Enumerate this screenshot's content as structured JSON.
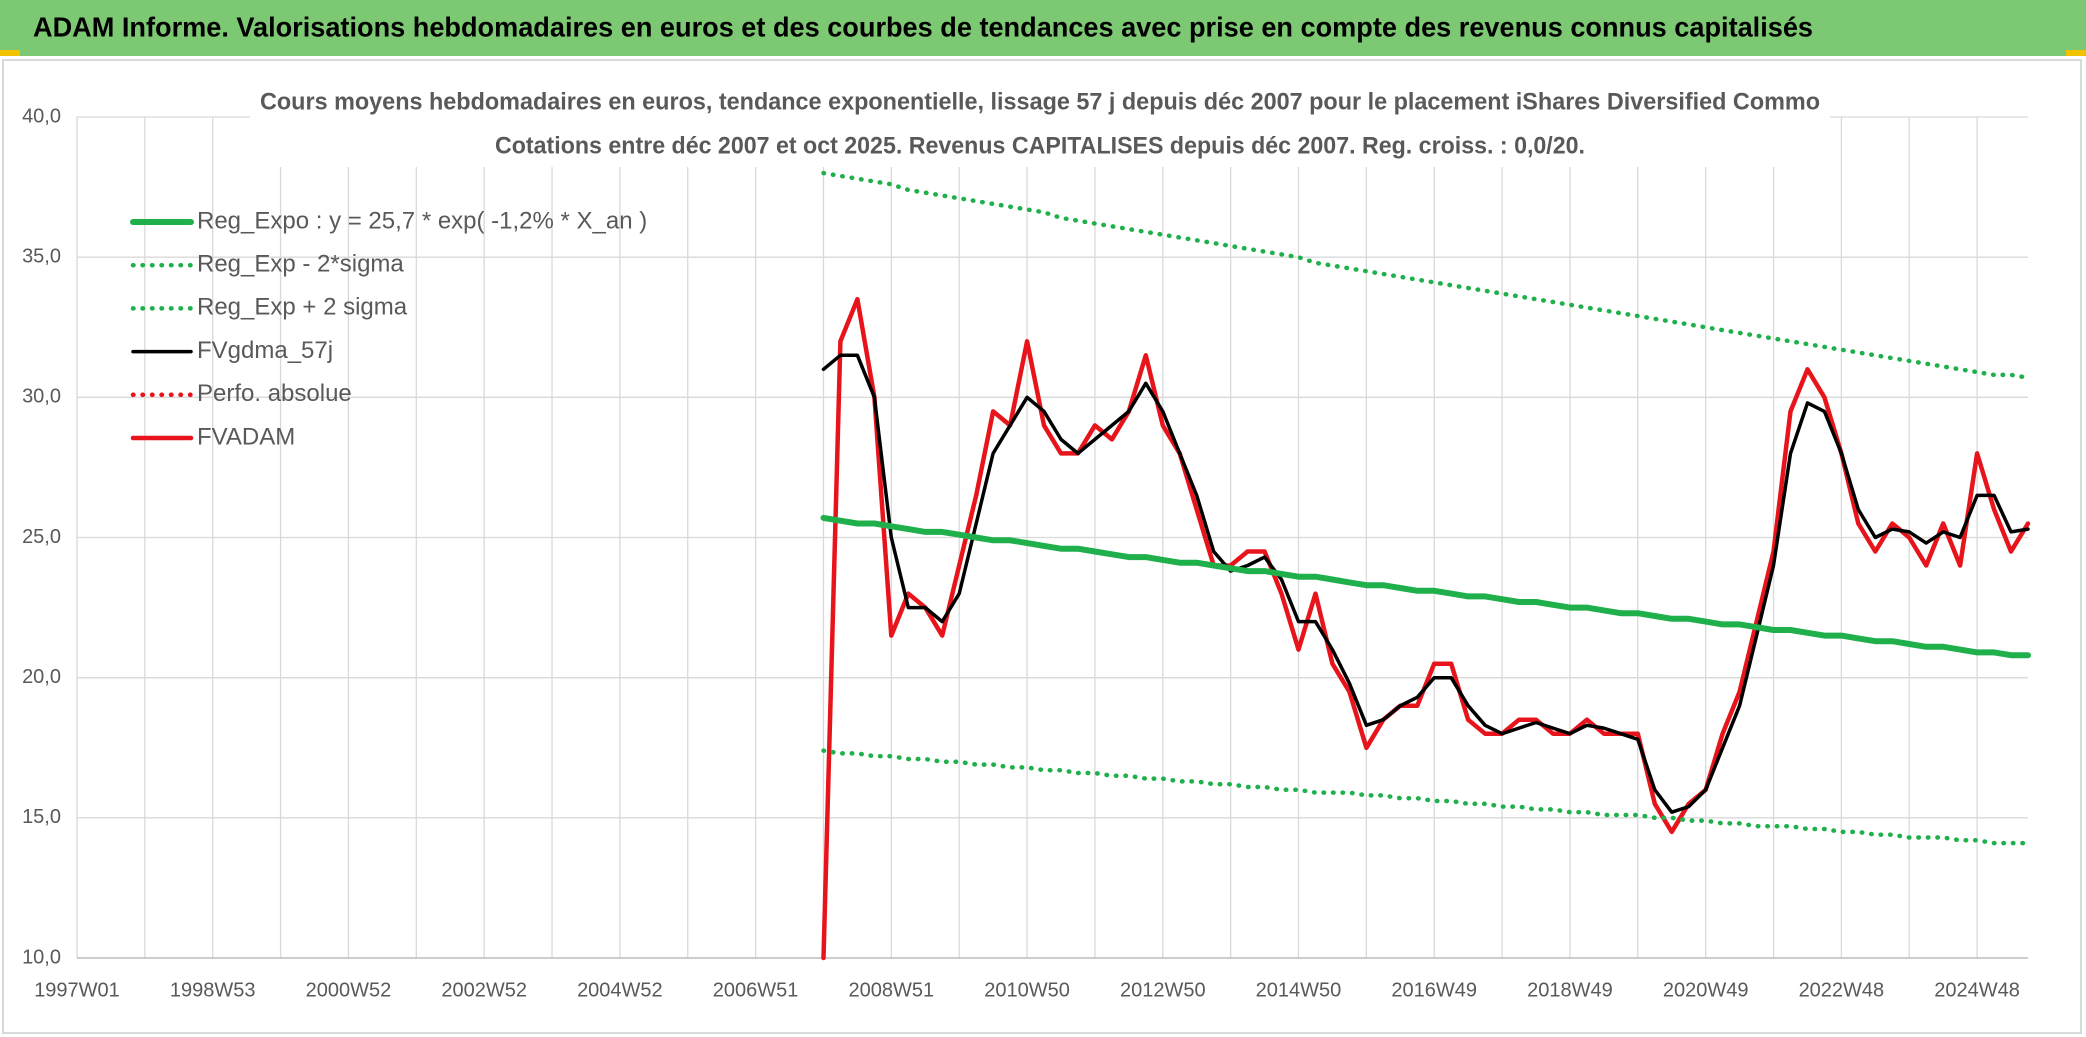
{
  "header": {
    "title": "ADAM Informe. Valorisations hebdomadaires en euros et des courbes de tendances avec prise en compte des revenus connus capitalisés"
  },
  "chart_data": {
    "type": "line",
    "title": "Cours moyens hebdomadaires en euros, tendance exponentielle, lissage 57 j depuis déc 2007 pour le placement iShares Diversified Commo",
    "subtitle": "Cotations entre déc 2007 et oct 2025. Revenus CAPITALISES depuis déc 2007. Reg. croiss. : 0,0/20.",
    "categories": [
      "1997W01",
      null,
      null,
      null,
      null,
      null,
      null,
      null,
      "1998W53",
      null,
      null,
      null,
      null,
      null,
      null,
      null,
      "2000W52",
      null,
      null,
      null,
      null,
      null,
      null,
      null,
      "2002W52",
      null,
      null,
      null,
      null,
      null,
      null,
      null,
      "2004W52",
      null,
      null,
      null,
      null,
      null,
      null,
      null,
      "2006W51",
      null,
      null,
      null,
      null,
      null,
      null,
      null,
      "2008W51",
      null,
      null,
      null,
      null,
      null,
      null,
      null,
      "2010W50",
      null,
      null,
      null,
      null,
      null,
      null,
      null,
      "2012W50",
      null,
      null,
      null,
      null,
      null,
      null,
      null,
      "2014W50",
      null,
      null,
      null,
      null,
      null,
      null,
      null,
      "2016W49",
      null,
      null,
      null,
      null,
      null,
      null,
      null,
      "2018W49",
      null,
      null,
      null,
      null,
      null,
      null,
      null,
      "2020W49",
      null,
      null,
      null,
      null,
      null,
      null,
      null,
      "2022W48",
      null,
      null,
      null,
      null,
      null,
      null,
      null,
      "2024W48",
      null,
      null,
      null
    ],
    "ylim": [
      10,
      40
    ],
    "yticks": [
      {
        "value": 10,
        "label": "10,0"
      },
      {
        "value": 15,
        "label": "15,0"
      },
      {
        "value": 20,
        "label": "20,0"
      },
      {
        "value": 25,
        "label": "25,0"
      },
      {
        "value": 30,
        "label": "30,0"
      },
      {
        "value": 35,
        "label": "35,0"
      },
      {
        "value": 40,
        "label": "40,0"
      }
    ],
    "grid": true,
    "legend": "top-left",
    "series": [
      {
        "name": "Reg_Expo : y = 25,7 * exp( -1,2% *  X_an )",
        "color": "#1fb04b",
        "style": "solid",
        "values": [
          null,
          null,
          null,
          null,
          null,
          null,
          null,
          null,
          null,
          null,
          null,
          null,
          null,
          null,
          null,
          null,
          null,
          null,
          null,
          null,
          null,
          null,
          null,
          null,
          null,
          null,
          null,
          null,
          null,
          null,
          null,
          null,
          null,
          null,
          null,
          null,
          null,
          null,
          null,
          null,
          null,
          null,
          null,
          null,
          25.7,
          25.6,
          25.5,
          25.5,
          25.4,
          25.3,
          25.2,
          25.2,
          25.1,
          25.0,
          24.9,
          24.9,
          24.8,
          24.7,
          24.6,
          24.6,
          24.5,
          24.4,
          24.3,
          24.3,
          24.2,
          24.1,
          24.1,
          24.0,
          23.9,
          23.8,
          23.8,
          23.7,
          23.6,
          23.6,
          23.5,
          23.4,
          23.3,
          23.3,
          23.2,
          23.1,
          23.1,
          23.0,
          22.9,
          22.9,
          22.8,
          22.7,
          22.7,
          22.6,
          22.5,
          22.5,
          22.4,
          22.3,
          22.3,
          22.2,
          22.1,
          22.1,
          22.0,
          21.9,
          21.9,
          21.8,
          21.7,
          21.7,
          21.6,
          21.5,
          21.5,
          21.4,
          21.3,
          21.3,
          21.2,
          21.1,
          21.1,
          21.0,
          20.9,
          20.9,
          20.8,
          20.8
        ]
      },
      {
        "name": "Reg_Exp - 2*sigma",
        "color": "#1fb04b",
        "style": "dotted",
        "values": [
          null,
          null,
          null,
          null,
          null,
          null,
          null,
          null,
          null,
          null,
          null,
          null,
          null,
          null,
          null,
          null,
          null,
          null,
          null,
          null,
          null,
          null,
          null,
          null,
          null,
          null,
          null,
          null,
          null,
          null,
          null,
          null,
          null,
          null,
          null,
          null,
          null,
          null,
          null,
          null,
          null,
          null,
          null,
          null,
          17.4,
          17.3,
          17.3,
          17.2,
          17.2,
          17.1,
          17.1,
          17.0,
          17.0,
          16.9,
          16.9,
          16.8,
          16.8,
          16.7,
          16.7,
          16.6,
          16.6,
          16.5,
          16.5,
          16.4,
          16.4,
          16.3,
          16.3,
          16.2,
          16.2,
          16.1,
          16.1,
          16.0,
          16.0,
          15.9,
          15.9,
          15.9,
          15.8,
          15.8,
          15.7,
          15.7,
          15.6,
          15.6,
          15.5,
          15.5,
          15.4,
          15.4,
          15.3,
          15.3,
          15.2,
          15.2,
          15.1,
          15.1,
          15.1,
          15.0,
          15.0,
          14.9,
          14.9,
          14.8,
          14.8,
          14.7,
          14.7,
          14.7,
          14.6,
          14.6,
          14.5,
          14.5,
          14.4,
          14.4,
          14.3,
          14.3,
          14.3,
          14.2,
          14.2,
          14.1,
          14.1,
          14.1
        ]
      },
      {
        "name": "Reg_Exp + 2 sigma",
        "color": "#1fb04b",
        "style": "dotted",
        "values": [
          null,
          null,
          null,
          null,
          null,
          null,
          null,
          null,
          null,
          null,
          null,
          null,
          null,
          null,
          null,
          null,
          null,
          null,
          null,
          null,
          null,
          null,
          null,
          null,
          null,
          null,
          null,
          null,
          null,
          null,
          null,
          null,
          null,
          null,
          null,
          null,
          null,
          null,
          null,
          null,
          null,
          null,
          null,
          null,
          38.0,
          37.9,
          37.8,
          37.7,
          37.6,
          37.4,
          37.3,
          37.2,
          37.1,
          37.0,
          36.9,
          36.8,
          36.7,
          36.6,
          36.4,
          36.3,
          36.2,
          36.1,
          36.0,
          35.9,
          35.8,
          35.7,
          35.6,
          35.5,
          35.4,
          35.3,
          35.2,
          35.1,
          35.0,
          34.8,
          34.7,
          34.6,
          34.5,
          34.4,
          34.3,
          34.2,
          34.1,
          34.0,
          33.9,
          33.8,
          33.7,
          33.6,
          33.5,
          33.4,
          33.3,
          33.2,
          33.1,
          33.0,
          32.9,
          32.8,
          32.7,
          32.6,
          32.5,
          32.4,
          32.3,
          32.2,
          32.1,
          32.0,
          31.9,
          31.8,
          31.7,
          31.6,
          31.5,
          31.4,
          31.3,
          31.2,
          31.1,
          31.0,
          30.9,
          30.8,
          30.8,
          30.7
        ]
      },
      {
        "name": "FVgdma_57j",
        "color": "#000000",
        "style": "solid",
        "values": [
          null,
          null,
          null,
          null,
          null,
          null,
          null,
          null,
          null,
          null,
          null,
          null,
          null,
          null,
          null,
          null,
          null,
          null,
          null,
          null,
          null,
          null,
          null,
          null,
          null,
          null,
          null,
          null,
          null,
          null,
          null,
          null,
          null,
          null,
          null,
          null,
          null,
          null,
          null,
          null,
          null,
          null,
          null,
          null,
          31,
          31.5,
          31.5,
          30,
          25,
          22.5,
          22.5,
          22,
          23,
          25.5,
          28,
          29,
          30,
          29.5,
          28.5,
          28,
          28.5,
          29,
          29.5,
          30.5,
          29.5,
          28,
          26.5,
          24.5,
          23.8,
          24,
          24.3,
          23.5,
          22,
          22,
          21,
          19.8,
          18.3,
          18.5,
          19,
          19.3,
          20,
          20,
          19,
          18.3,
          18,
          18.2,
          18.4,
          18.2,
          18,
          18.3,
          18.2,
          18,
          17.8,
          16,
          15.2,
          15.4,
          16,
          17.5,
          19,
          21.5,
          24,
          28,
          29.8,
          29.5,
          28,
          26,
          25,
          25.3,
          25.2,
          24.8,
          25.2,
          25,
          26.5,
          26.5,
          25.2,
          25.3
        ]
      },
      {
        "name": "Perfo. absolue",
        "color": "#e8141b",
        "style": "dotted",
        "values": [
          null,
          null,
          null,
          null,
          null,
          null,
          null,
          null,
          null,
          null,
          null,
          null,
          null,
          null,
          null,
          null,
          null,
          null,
          null,
          null,
          null,
          null,
          null,
          null,
          null,
          null,
          null,
          null,
          null,
          null,
          null,
          null,
          null,
          null,
          null,
          null,
          null,
          null,
          null,
          null,
          null,
          null,
          null,
          null,
          null,
          null,
          null,
          null,
          null,
          null,
          null,
          null,
          null,
          null,
          null,
          null,
          null,
          null,
          null,
          null,
          null,
          null,
          null,
          null,
          null,
          null,
          null,
          null,
          null,
          null,
          null,
          null,
          null,
          null,
          null,
          null,
          null,
          null,
          null,
          null,
          null,
          null,
          null,
          null,
          null,
          null,
          null,
          null,
          null,
          null,
          null,
          null,
          null,
          null,
          null,
          null,
          null,
          null,
          null,
          null,
          null,
          null,
          null,
          null,
          null,
          null,
          null,
          null,
          null,
          null,
          null,
          null,
          null,
          null,
          null,
          null
        ]
      },
      {
        "name": "FVADAM",
        "color": "#e8141b",
        "style": "solid",
        "values": [
          null,
          null,
          null,
          null,
          null,
          null,
          null,
          null,
          null,
          null,
          null,
          null,
          null,
          null,
          null,
          null,
          null,
          null,
          null,
          null,
          null,
          null,
          null,
          null,
          null,
          null,
          null,
          null,
          null,
          null,
          null,
          null,
          null,
          null,
          null,
          null,
          null,
          null,
          null,
          null,
          null,
          null,
          null,
          null,
          10,
          32,
          33.5,
          30,
          21.5,
          23,
          22.5,
          21.5,
          24,
          26.5,
          29.5,
          29,
          32,
          29,
          28,
          28,
          29,
          28.5,
          29.5,
          31.5,
          29,
          28,
          26,
          24,
          24,
          24.5,
          24.5,
          23,
          21,
          23,
          20.5,
          19.5,
          17.5,
          18.5,
          19,
          19,
          20.5,
          20.5,
          18.5,
          18,
          18,
          18.5,
          18.5,
          18,
          18,
          18.5,
          18,
          18,
          18,
          15.5,
          14.5,
          15.5,
          16,
          18,
          19.5,
          22,
          24.5,
          29.5,
          31,
          30,
          28,
          25.5,
          24.5,
          25.5,
          25,
          24,
          25.5,
          24,
          28,
          26,
          24.5,
          25.5
        ]
      }
    ]
  }
}
